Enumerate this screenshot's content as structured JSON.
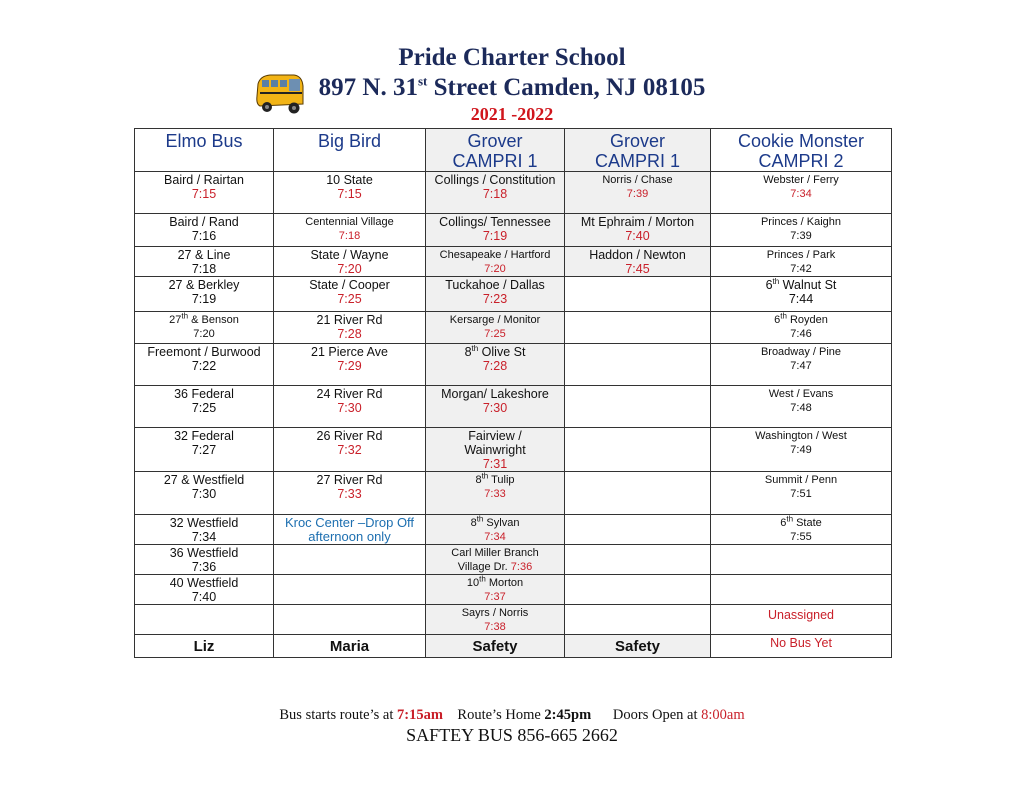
{
  "header": {
    "title": "Pride Charter School",
    "address_pre": "897 N. 31",
    "address_sup": "st",
    "address_post": " Street Camden, NJ 08105",
    "year": "2021 -2022",
    "logo_icon": "school-bus-icon"
  },
  "table": {
    "columns": [
      {
        "line1": "Elmo Bus",
        "line2": ""
      },
      {
        "line1": "Big Bird",
        "line2": ""
      },
      {
        "line1": "Grover",
        "line2": "CAMPRI 1"
      },
      {
        "line1": "Grover",
        "line2": "CAMPRI 1"
      },
      {
        "line1": "Cookie Monster",
        "line2": "CAMPRI 2"
      }
    ],
    "rows": [
      [
        {
          "text": "Baird / Rairtan",
          "time": "7:15",
          "timeStyle": "red bold"
        },
        {
          "text": "10 State",
          "time": "7:15",
          "timeStyle": "red bold"
        },
        {
          "text": "Collings / Constitution",
          "time": "7:18",
          "timeStyle": "red bold"
        },
        {
          "text": "Norris / Chase",
          "time": "7:39",
          "timeStyle": "red",
          "small": true
        },
        {
          "text": "Webster / Ferry",
          "time": "7:34",
          "timeStyle": "red",
          "small": true
        }
      ],
      [
        {
          "text": "Baird / Rand",
          "time": "7:16"
        },
        {
          "text": "Centennial Village",
          "time": "7:18",
          "timeStyle": "red",
          "small": true
        },
        {
          "text": "Collings/  Tennessee",
          "time": "7:19",
          "timeStyle": "red"
        },
        {
          "text": "Mt Ephraim / Morton",
          "time": "7:40",
          "timeStyle": "red"
        },
        {
          "text": "Princes / Kaighn",
          "time": "7:39",
          "small": true
        }
      ],
      [
        {
          "text": "27 & Line",
          "time": "7:18"
        },
        {
          "text": "State / Wayne",
          "time": "7:20",
          "timeStyle": "red"
        },
        {
          "text": "Chesapeake / Hartford",
          "time": "7:20",
          "timeStyle": "red",
          "small": true
        },
        {
          "text": "Haddon / Newton",
          "time": "7:45",
          "timeStyle": "red"
        },
        {
          "text": "Princes / Park",
          "time": "7:42",
          "small": true
        }
      ],
      [
        {
          "text": "27 & Berkley",
          "time": "7:19"
        },
        {
          "text": "State / Cooper",
          "time": "7:25",
          "timeStyle": "red"
        },
        {
          "text": "Tuckahoe / Dallas",
          "time": "7:23",
          "timeStyle": "red bold"
        },
        {},
        {
          "pre": "6",
          "sup": "th",
          "text": " Walnut St",
          "time": "7:44",
          "timeStyle": "bold"
        }
      ],
      [
        {
          "pre": "27",
          "sup": "th",
          "text": " & Benson",
          "time": "7:20",
          "nameStyle": "bold",
          "small": true
        },
        {
          "text": "21 River Rd",
          "time": "7:28",
          "timeStyle": "red"
        },
        {
          "text": "Kersarge / Monitor",
          "time": "7:25",
          "timeStyle": "red",
          "small": true
        },
        {},
        {
          "pre": "6",
          "sup": "th",
          "text": " Royden",
          "time": "7:46",
          "small": true
        }
      ],
      [
        {
          "text": "Freemont / Burwood",
          "time": "7:22"
        },
        {
          "text": "21 Pierce Ave",
          "time": "7:29",
          "timeStyle": "red"
        },
        {
          "pre": "8",
          "sup": "th",
          "text": " Olive St",
          "time": "7:28",
          "timeStyle": "red"
        },
        {},
        {
          "text": "Broadway / Pine",
          "time": "7:47",
          "small": true
        }
      ],
      [
        {
          "text": "36 Federal",
          "time": "7:25"
        },
        {
          "text": "24 River Rd",
          "time": "7:30",
          "timeStyle": "red"
        },
        {
          "text": "Morgan/ Lakeshore",
          "time": "7:30",
          "timeStyle": "red"
        },
        {},
        {
          "text": "West / Evans",
          "time": "7:48",
          "small": true
        }
      ],
      [
        {
          "text": "32 Federal",
          "time": "7:27"
        },
        {
          "text": "26 River Rd",
          "time": "7:32",
          "timeStyle": "red"
        },
        {
          "text": "Fairview /",
          "text2": "Wainwright",
          "time": "7:31",
          "timeStyle": "red"
        },
        {},
        {
          "text": "Washington / West",
          "time": "7:49",
          "small": true
        }
      ],
      [
        {
          "text": "27 & Westfield",
          "time": "7:30"
        },
        {
          "text": "27 River Rd",
          "time": "7:33",
          "timeStyle": "red"
        },
        {
          "pre": "8",
          "sup": "th",
          "text": " Tulip",
          "time": "7:33",
          "timeStyle": "red",
          "small": true
        },
        {},
        {
          "text": "Summit / Penn",
          "time": "7:51",
          "small": true
        }
      ],
      [
        {
          "text": "32 Westfield",
          "time": "7:34"
        },
        {
          "note": "Kroc Center  –Drop Off",
          "note2": "afternoon only"
        },
        {
          "pre": "8",
          "sup": "th",
          "text": " Sylvan",
          "time": "7:34",
          "timeStyle": "red",
          "small": true
        },
        {},
        {
          "pre": "6",
          "sup": "th",
          "text": " State",
          "time": "7:55",
          "small": true
        }
      ],
      [
        {
          "text": "36 Westfield",
          "time": "7:36"
        },
        {},
        {
          "text": "Carl Miller Branch",
          "text2": "Village Dr. ",
          "inlineTime": "7:36",
          "small": true
        },
        {},
        {}
      ],
      [
        {
          "text": "40 Westfield",
          "time": "7:40"
        },
        {},
        {
          "pre": "10",
          "sup": "th",
          "text": " Morton",
          "time": "7:37",
          "timeStyle": "red",
          "small": true
        },
        {},
        {}
      ],
      [
        {},
        {},
        {
          "text": "Sayrs / Norris",
          "time": "7:38",
          "timeStyle": "red",
          "small": true
        },
        {},
        {
          "alert": "Unassigned"
        }
      ]
    ],
    "footer": [
      "Liz",
      "Maria",
      "Safety",
      "Safety",
      "No Bus Yet"
    ]
  },
  "notes": {
    "start_label": "Bus starts route’s at ",
    "start_time": "7:15am",
    "home_label": "Route’s Home ",
    "home_time": "2:45pm",
    "doors_label": "Doors Open at ",
    "doors_time": "8:00am",
    "safety_bus": "SAFTEY BUS 856-665 2662"
  },
  "colors": {
    "title": "#1c2a5a",
    "accent_red": "#c9202a",
    "header_blue": "#1c3a8a",
    "note_blue": "#1d6fb0",
    "shade": "#f0f0f0"
  }
}
